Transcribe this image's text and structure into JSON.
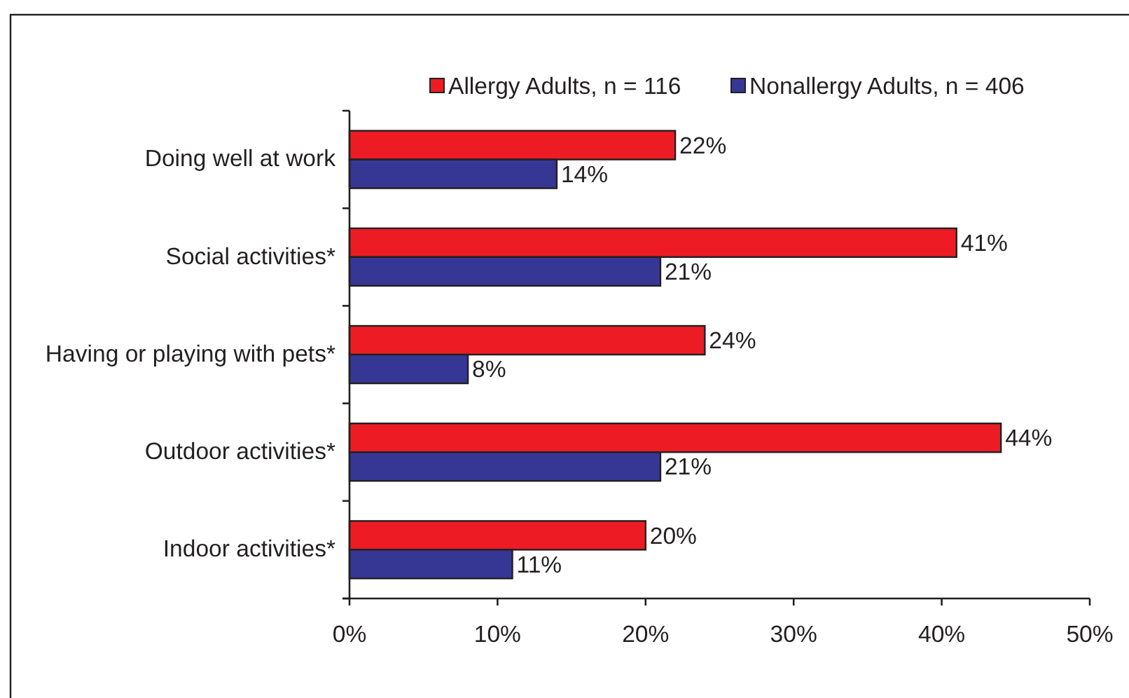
{
  "chart_data": {
    "type": "bar",
    "orientation": "horizontal",
    "categories": [
      "Doing well at work",
      "Social activities*",
      "Having or playing with pets*",
      "Outdoor activities*",
      "Indoor activities*"
    ],
    "series": [
      {
        "name": "Allergy Adults, n = 116",
        "color": "#ed1c24",
        "values": [
          22,
          41,
          24,
          44,
          20
        ],
        "value_labels": [
          "22%",
          "41%",
          "24%",
          "44%",
          "20%"
        ]
      },
      {
        "name": "Nonallergy Adults, n = 406",
        "color": "#363795",
        "values": [
          14,
          21,
          8,
          21,
          11
        ],
        "value_labels": [
          "14%",
          "21%",
          "8%",
          "21%",
          "11%"
        ]
      }
    ],
    "xlim": [
      0,
      50
    ],
    "xticks": [
      {
        "value": 0,
        "label": "0%"
      },
      {
        "value": 10,
        "label": "10%"
      },
      {
        "value": 20,
        "label": "20%"
      },
      {
        "value": 30,
        "label": "30%"
      },
      {
        "value": 40,
        "label": "40%"
      },
      {
        "value": 50,
        "label": "50%"
      }
    ],
    "grid": false,
    "legend": "top"
  }
}
